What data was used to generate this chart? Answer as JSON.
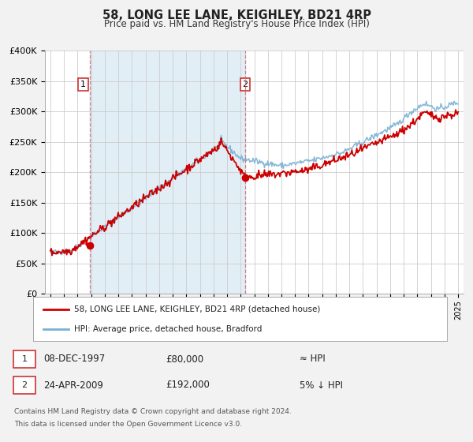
{
  "title": "58, LONG LEE LANE, KEIGHLEY, BD21 4RP",
  "subtitle": "Price paid vs. HM Land Registry's House Price Index (HPI)",
  "background_color": "#f2f2f2",
  "plot_bg_color": "#ffffff",
  "shaded_region": [
    1997.92,
    2009.33
  ],
  "marker1_x": 1997.92,
  "marker1_y": 80000,
  "marker2_x": 2009.33,
  "marker2_y": 192000,
  "sale1_date": "08-DEC-1997",
  "sale1_price": "£80,000",
  "sale1_hpi": "≈ HPI",
  "sale2_date": "24-APR-2009",
  "sale2_price": "£192,000",
  "sale2_hpi": "5% ↓ HPI",
  "legend_line1": "58, LONG LEE LANE, KEIGHLEY, BD21 4RP (detached house)",
  "legend_line2": "HPI: Average price, detached house, Bradford",
  "footer1": "Contains HM Land Registry data © Crown copyright and database right 2024.",
  "footer2": "This data is licensed under the Open Government Licence v3.0.",
  "red_color": "#cc0000",
  "blue_color": "#7ab0d4",
  "ylim": [
    0,
    400000
  ],
  "yticks": [
    0,
    50000,
    100000,
    150000,
    200000,
    250000,
    300000,
    350000,
    400000
  ],
  "ytick_labels": [
    "£0",
    "£50K",
    "£100K",
    "£150K",
    "£200K",
    "£250K",
    "£300K",
    "£350K",
    "£400K"
  ],
  "xlim": [
    1994.6,
    2025.4
  ],
  "xticks": [
    1995,
    1996,
    1997,
    1998,
    1999,
    2000,
    2001,
    2002,
    2003,
    2004,
    2005,
    2006,
    2007,
    2008,
    2009,
    2010,
    2011,
    2012,
    2013,
    2014,
    2015,
    2016,
    2017,
    2018,
    2019,
    2020,
    2021,
    2022,
    2023,
    2024,
    2025
  ]
}
